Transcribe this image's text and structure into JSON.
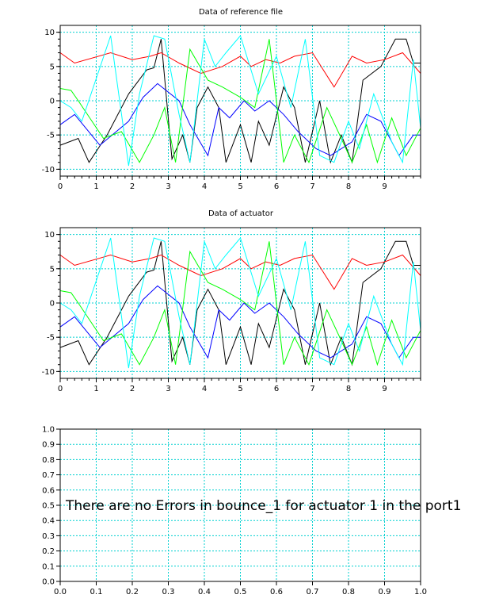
{
  "chart_data": [
    {
      "type": "line",
      "title": "Data of reference file",
      "xlim": [
        0,
        10
      ],
      "ylim": [
        -11,
        11
      ],
      "x_ticks": [
        "0",
        "1",
        "2",
        "3",
        "4",
        "5",
        "6",
        "7",
        "8",
        "9"
      ],
      "y_ticks": [
        "10",
        "5",
        "0",
        "-5",
        "-10"
      ],
      "grid": true,
      "series": [
        {
          "color": "#000000",
          "x": [
            0,
            0.5,
            0.8,
            1.3,
            1.9,
            2.4,
            2.6,
            2.8,
            3.1,
            3.4,
            3.6,
            3.8,
            4.1,
            4.4,
            4.6,
            5.0,
            5.3,
            5.5,
            5.8,
            6.2,
            6.5,
            6.8,
            7.2,
            7.5,
            7.8,
            8.1,
            8.4,
            8.9,
            9.3,
            9.6,
            9.8,
            10
          ],
          "y": [
            -6.5,
            -5.5,
            -9,
            -5,
            1,
            4.5,
            4.8,
            9,
            -8.5,
            -5,
            -9,
            -1,
            2,
            -1,
            -9,
            -3.5,
            -9,
            -3,
            -6.5,
            2,
            -1,
            -9,
            0,
            -9,
            -5,
            -9,
            3,
            5,
            9,
            9,
            5.5,
            5.5
          ]
        },
        {
          "color": "#ff0000",
          "x": [
            0,
            0.4,
            1.4,
            2,
            2.5,
            2.8,
            3.3,
            3.9,
            4.5,
            5,
            5.3,
            5.7,
            6.1,
            6.5,
            7,
            7.6,
            8.1,
            8.5,
            9,
            9.5,
            10
          ],
          "y": [
            7,
            5.5,
            7,
            6,
            6.5,
            7,
            5.5,
            4,
            5,
            6.5,
            5,
            6,
            5.5,
            6.5,
            7,
            2,
            6.5,
            5.5,
            6,
            7,
            4
          ]
        },
        {
          "color": "#0000ff",
          "x": [
            0,
            0.4,
            1.1,
            1.9,
            2.3,
            2.7,
            3.3,
            3.6,
            4.1,
            4.4,
            4.7,
            5.1,
            5.4,
            5.8,
            6.2,
            6.6,
            7.1,
            7.5,
            8.1,
            8.5,
            8.9,
            9.4,
            9.8,
            10
          ],
          "y": [
            -3.5,
            -2,
            -6.5,
            -3,
            0.5,
            2.5,
            0,
            -3.5,
            -8,
            -1,
            -2.5,
            0,
            -1.5,
            0,
            -2,
            -4.5,
            -7,
            -8,
            -6,
            -2,
            -3,
            -8,
            -5,
            -5
          ]
        },
        {
          "color": "#00ff00",
          "x": [
            0,
            0.3,
            0.5,
            1.2,
            1.7,
            2.2,
            2.6,
            2.9,
            3.2,
            3.6,
            4.1,
            4.5,
            5,
            5.4,
            5.8,
            6.2,
            6.5,
            6.9,
            7.4,
            7.8,
            8.1,
            8.5,
            8.8,
            9.2,
            9.6,
            10
          ],
          "y": [
            1.8,
            1.5,
            0,
            -5.5,
            -4.5,
            -9,
            -5,
            -1,
            -9,
            7.5,
            3,
            2,
            0.5,
            -1,
            9,
            -9,
            -5,
            -9,
            -1,
            -5.5,
            -9,
            -3.5,
            -9,
            -2.5,
            -8,
            -4
          ]
        },
        {
          "color": "#00ffff",
          "x": [
            0,
            0.3,
            0.6,
            1.4,
            1.9,
            2.2,
            2.6,
            2.9,
            3.3,
            3.6,
            4,
            4.3,
            4.6,
            5,
            5.5,
            6,
            6.4,
            6.8,
            7.2,
            7.6,
            8,
            8.3,
            8.7,
            9.2,
            9.5,
            9.8,
            10
          ],
          "y": [
            0,
            -1,
            -3,
            9.5,
            -9.5,
            1,
            9.5,
            9,
            -2,
            -9,
            9,
            5,
            7,
            9.5,
            1,
            6.5,
            -1,
            9,
            -8,
            -9,
            -3,
            -7,
            1,
            -6,
            -9,
            6,
            -4
          ]
        }
      ]
    },
    {
      "type": "line",
      "title": "Data of actuator",
      "xlim": [
        0,
        10
      ],
      "ylim": [
        -11,
        11
      ],
      "x_ticks": [
        "0",
        "1",
        "2",
        "3",
        "4",
        "5",
        "6",
        "7",
        "8",
        "9"
      ],
      "y_ticks": [
        "10",
        "5",
        "0",
        "-5",
        "-10"
      ],
      "grid": true,
      "series": [
        {
          "color": "#000000",
          "x": [
            0,
            0.5,
            0.8,
            1.3,
            1.9,
            2.4,
            2.6,
            2.8,
            3.1,
            3.4,
            3.6,
            3.8,
            4.1,
            4.4,
            4.6,
            5.0,
            5.3,
            5.5,
            5.8,
            6.2,
            6.5,
            6.8,
            7.2,
            7.5,
            7.8,
            8.1,
            8.4,
            8.9,
            9.3,
            9.6,
            9.8,
            10
          ],
          "y": [
            -6.5,
            -5.5,
            -9,
            -5,
            1,
            4.5,
            4.8,
            9,
            -8.5,
            -5,
            -9,
            -1,
            2,
            -1,
            -9,
            -3.5,
            -9,
            -3,
            -6.5,
            2,
            -1,
            -9,
            0,
            -9,
            -5,
            -9,
            3,
            5,
            9,
            9,
            5.5,
            5.5
          ]
        },
        {
          "color": "#ff0000",
          "x": [
            0,
            0.4,
            1.4,
            2,
            2.5,
            2.8,
            3.3,
            3.9,
            4.5,
            5,
            5.3,
            5.7,
            6.1,
            6.5,
            7,
            7.6,
            8.1,
            8.5,
            9,
            9.5,
            10
          ],
          "y": [
            7,
            5.5,
            7,
            6,
            6.5,
            7,
            5.5,
            4,
            5,
            6.5,
            5,
            6,
            5.5,
            6.5,
            7,
            2,
            6.5,
            5.5,
            6,
            7,
            4
          ]
        },
        {
          "color": "#0000ff",
          "x": [
            0,
            0.4,
            1.1,
            1.9,
            2.3,
            2.7,
            3.3,
            3.6,
            4.1,
            4.4,
            4.7,
            5.1,
            5.4,
            5.8,
            6.2,
            6.6,
            7.1,
            7.5,
            8.1,
            8.5,
            8.9,
            9.4,
            9.8,
            10
          ],
          "y": [
            -3.5,
            -2,
            -6.5,
            -3,
            0.5,
            2.5,
            0,
            -3.5,
            -8,
            -1,
            -2.5,
            0,
            -1.5,
            0,
            -2,
            -4.5,
            -7,
            -8,
            -6,
            -2,
            -3,
            -8,
            -5,
            -5
          ]
        },
        {
          "color": "#00ff00",
          "x": [
            0,
            0.3,
            0.5,
            1.2,
            1.7,
            2.2,
            2.6,
            2.9,
            3.2,
            3.6,
            4.1,
            4.5,
            5,
            5.4,
            5.8,
            6.2,
            6.5,
            6.9,
            7.4,
            7.8,
            8.1,
            8.5,
            8.8,
            9.2,
            9.6,
            10
          ],
          "y": [
            1.8,
            1.5,
            0,
            -5.5,
            -4.5,
            -9,
            -5,
            -1,
            -9,
            7.5,
            3,
            2,
            0.5,
            -1,
            9,
            -9,
            -5,
            -9,
            -1,
            -5.5,
            -9,
            -3.5,
            -9,
            -2.5,
            -8,
            -4
          ]
        },
        {
          "color": "#00ffff",
          "x": [
            0,
            0.3,
            0.6,
            1.4,
            1.9,
            2.2,
            2.6,
            2.9,
            3.3,
            3.6,
            4,
            4.3,
            4.6,
            5,
            5.5,
            6,
            6.4,
            6.8,
            7.2,
            7.6,
            8,
            8.3,
            8.7,
            9.2,
            9.5,
            9.8,
            10
          ],
          "y": [
            0,
            -1,
            -3,
            9.5,
            -9.5,
            1,
            9.5,
            9,
            -2,
            -9,
            9,
            5,
            7,
            9.5,
            1,
            6.5,
            -1,
            9,
            -8,
            -9,
            -3,
            -7,
            1,
            -6,
            -9,
            6,
            -4
          ]
        }
      ]
    },
    {
      "type": "line",
      "title": "",
      "xlim": [
        0,
        1
      ],
      "ylim": [
        0,
        1
      ],
      "x_ticks": [
        "0.0",
        "0.1",
        "0.2",
        "0.3",
        "0.4",
        "0.5",
        "0.6",
        "0.7",
        "0.8",
        "0.9",
        "1.0"
      ],
      "y_ticks": [
        "1.0",
        "0.9",
        "0.8",
        "0.7",
        "0.6",
        "0.5",
        "0.4",
        "0.3",
        "0.2",
        "0.1",
        "0.0"
      ],
      "grid": true,
      "annotation": "There are no Errors in bounce_1 for actuator 1 in the port1",
      "series": []
    }
  ]
}
